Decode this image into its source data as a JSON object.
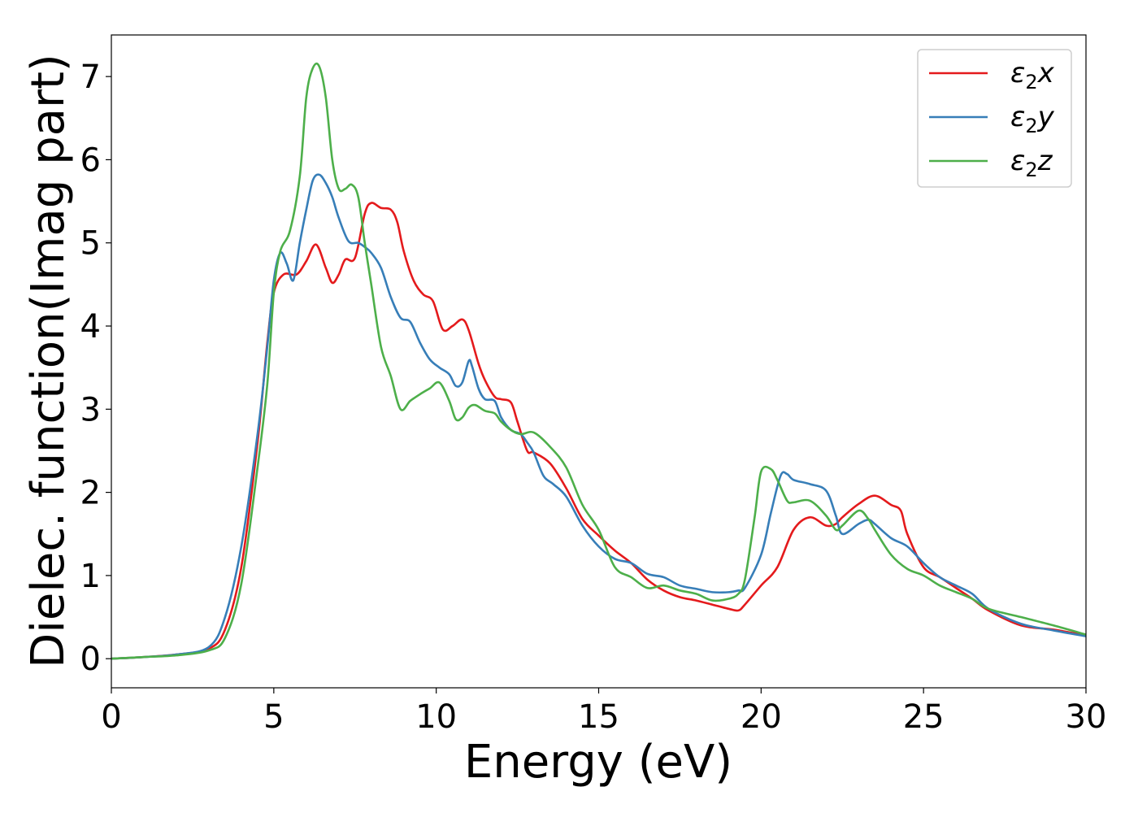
{
  "chart_data": {
    "type": "line",
    "xlabel": "Energy (eV)",
    "ylabel": "Dielec. function(Imag part)",
    "xlim": [
      0,
      30
    ],
    "ylim": [
      -0.35,
      7.5
    ],
    "xticks": [
      0,
      5,
      10,
      15,
      20,
      25,
      30
    ],
    "yticks": [
      0,
      1,
      2,
      3,
      4,
      5,
      6,
      7
    ],
    "grid": false,
    "legend_position": "top-right",
    "series": [
      {
        "name": "ε2x",
        "color": "#e41a1c",
        "x": [
          0,
          1,
          2,
          3,
          3.5,
          4,
          4.5,
          4.8,
          5.0,
          5.3,
          5.7,
          6.0,
          6.3,
          6.6,
          6.8,
          7.0,
          7.2,
          7.5,
          7.8,
          8.0,
          8.3,
          8.6,
          8.8,
          9.0,
          9.3,
          9.6,
          9.9,
          10.2,
          10.5,
          10.8,
          11.0,
          11.3,
          11.5,
          11.8,
          12.0,
          12.3,
          12.5,
          12.8,
          13.0,
          13.5,
          14.0,
          14.5,
          15.0,
          15.5,
          16.0,
          16.5,
          17.0,
          17.5,
          18.0,
          18.5,
          19.0,
          19.3,
          19.5,
          20.0,
          20.5,
          21.0,
          21.5,
          22.0,
          22.3,
          22.5,
          23.0,
          23.5,
          24.0,
          24.3,
          24.5,
          25.0,
          25.5,
          26.0,
          26.5,
          27.0,
          28.0,
          29.0,
          30.0
        ],
        "values": [
          0,
          0.02,
          0.05,
          0.12,
          0.35,
          1.1,
          2.6,
          3.8,
          4.4,
          4.62,
          4.62,
          4.78,
          4.98,
          4.7,
          4.52,
          4.62,
          4.8,
          4.82,
          5.35,
          5.48,
          5.42,
          5.4,
          5.25,
          4.9,
          4.55,
          4.38,
          4.3,
          3.96,
          4.0,
          4.08,
          3.95,
          3.55,
          3.35,
          3.15,
          3.12,
          3.08,
          2.85,
          2.5,
          2.48,
          2.35,
          2.05,
          1.68,
          1.48,
          1.3,
          1.15,
          0.95,
          0.82,
          0.74,
          0.7,
          0.65,
          0.6,
          0.58,
          0.65,
          0.88,
          1.1,
          1.55,
          1.7,
          1.6,
          1.62,
          1.7,
          1.86,
          1.96,
          1.85,
          1.78,
          1.5,
          1.1,
          0.98,
          0.85,
          0.72,
          0.58,
          0.4,
          0.35,
          0.28
        ]
      },
      {
        "name": "ε2y",
        "color": "#377eb8",
        "x": [
          0,
          1,
          2,
          3,
          3.5,
          4,
          4.5,
          4.8,
          5.0,
          5.2,
          5.4,
          5.6,
          5.8,
          6.0,
          6.2,
          6.4,
          6.6,
          6.8,
          7.0,
          7.3,
          7.6,
          7.8,
          8.0,
          8.3,
          8.6,
          8.9,
          9.2,
          9.5,
          9.8,
          10.1,
          10.4,
          10.6,
          10.8,
          11.0,
          11.1,
          11.3,
          11.5,
          11.8,
          12.0,
          12.3,
          12.6,
          12.8,
          13.0,
          13.3,
          13.6,
          14.0,
          14.5,
          15.0,
          15.5,
          16.0,
          16.5,
          17.0,
          17.5,
          18.0,
          18.5,
          19.0,
          19.3,
          19.5,
          20.0,
          20.3,
          20.6,
          20.8,
          21.0,
          21.5,
          22.0,
          22.3,
          22.5,
          23.0,
          23.3,
          23.5,
          24.0,
          24.5,
          25.0,
          25.5,
          26.0,
          26.5,
          27.0,
          28.0,
          29.0,
          30.0
        ],
        "values": [
          0,
          0.02,
          0.05,
          0.14,
          0.5,
          1.35,
          2.7,
          3.75,
          4.55,
          4.88,
          4.75,
          4.55,
          5.0,
          5.4,
          5.75,
          5.82,
          5.72,
          5.55,
          5.3,
          5.02,
          5.0,
          4.95,
          4.88,
          4.7,
          4.35,
          4.1,
          4.05,
          3.8,
          3.6,
          3.5,
          3.42,
          3.28,
          3.32,
          3.58,
          3.52,
          3.25,
          3.12,
          3.1,
          2.9,
          2.75,
          2.7,
          2.6,
          2.48,
          2.2,
          2.1,
          1.95,
          1.6,
          1.35,
          1.2,
          1.15,
          1.02,
          0.98,
          0.88,
          0.84,
          0.8,
          0.8,
          0.82,
          0.85,
          1.25,
          1.75,
          2.2,
          2.22,
          2.15,
          2.1,
          2.02,
          1.72,
          1.5,
          1.62,
          1.67,
          1.62,
          1.45,
          1.35,
          1.15,
          0.98,
          0.88,
          0.78,
          0.6,
          0.42,
          0.34,
          0.27
        ]
      },
      {
        "name": "ε2z",
        "color": "#4daf4a",
        "x": [
          0,
          1,
          2,
          3,
          3.5,
          4,
          4.5,
          4.8,
          5.0,
          5.2,
          5.5,
          5.8,
          6.0,
          6.2,
          6.4,
          6.6,
          6.8,
          7.0,
          7.2,
          7.4,
          7.6,
          7.8,
          8.0,
          8.3,
          8.6,
          8.9,
          9.2,
          9.5,
          9.8,
          10.1,
          10.4,
          10.6,
          10.8,
          11.0,
          11.2,
          11.5,
          11.8,
          12.0,
          12.3,
          12.6,
          13.0,
          13.5,
          14.0,
          14.5,
          15.0,
          15.5,
          16.0,
          16.5,
          17.0,
          17.5,
          18.0,
          18.5,
          19.0,
          19.3,
          19.5,
          19.8,
          20.0,
          20.3,
          20.5,
          20.8,
          21.0,
          21.5,
          22.0,
          22.3,
          22.5,
          23.0,
          23.3,
          23.5,
          24.0,
          24.5,
          25.0,
          25.5,
          26.0,
          26.5,
          27.0,
          28.0,
          29.0,
          30.0
        ],
        "values": [
          0,
          0.02,
          0.04,
          0.1,
          0.25,
          0.9,
          2.3,
          3.3,
          4.4,
          4.9,
          5.15,
          5.8,
          6.75,
          7.1,
          7.12,
          6.75,
          6.0,
          5.65,
          5.65,
          5.7,
          5.55,
          5.0,
          4.5,
          3.75,
          3.4,
          3.0,
          3.1,
          3.18,
          3.25,
          3.32,
          3.1,
          2.88,
          2.9,
          3.02,
          3.05,
          2.98,
          2.95,
          2.85,
          2.75,
          2.7,
          2.72,
          2.55,
          2.3,
          1.85,
          1.55,
          1.1,
          0.98,
          0.85,
          0.88,
          0.82,
          0.78,
          0.7,
          0.72,
          0.78,
          0.95,
          1.7,
          2.25,
          2.28,
          2.15,
          1.9,
          1.88,
          1.9,
          1.72,
          1.55,
          1.6,
          1.78,
          1.68,
          1.55,
          1.25,
          1.08,
          1.0,
          0.88,
          0.8,
          0.72,
          0.6,
          0.5,
          0.4,
          0.29
        ]
      }
    ]
  }
}
